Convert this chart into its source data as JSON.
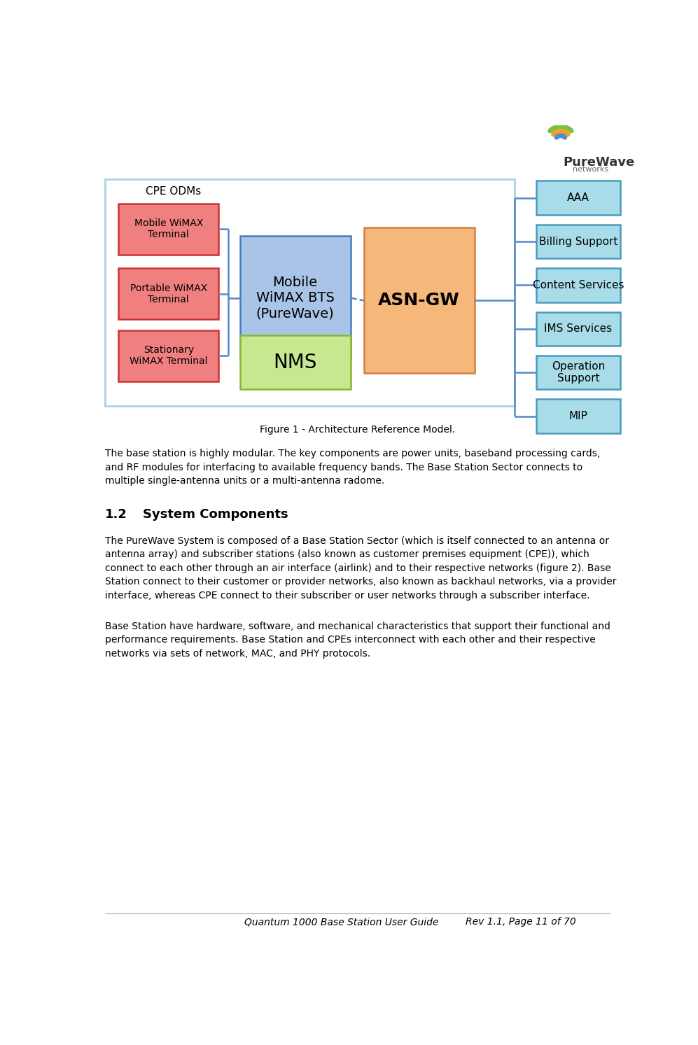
{
  "title": "Figure 1 - Architecture Reference Model.",
  "footer_left": "Quantum 1000 Base Station User Guide",
  "footer_right": "Rev 1.1, Page 11 of 70",
  "outer_box_color": "#a8d4e6",
  "cpe_label": "CPE ODMs",
  "cpe_boxes": [
    {
      "label": "Mobile WiMAX\nTerminal",
      "color": "#f08080",
      "edge": "#cc3333"
    },
    {
      "label": "Portable WiMAX\nTerminal",
      "color": "#f08080",
      "edge": "#cc3333"
    },
    {
      "label": "Stationary\nWiMAX Terminal",
      "color": "#f08080",
      "edge": "#cc3333"
    }
  ],
  "bts_box": {
    "label": "Mobile\nWiMAX BTS\n(PureWave)",
    "color": "#aac4e8",
    "edge": "#4a7cba"
  },
  "nms_box": {
    "label": "NMS",
    "color": "#c8e890",
    "edge": "#88b830"
  },
  "asgw_box": {
    "label": "ASN-GW",
    "color": "#f5b87a",
    "edge": "#d08040"
  },
  "right_boxes": [
    {
      "label": "AAA"
    },
    {
      "label": "Billing Support"
    },
    {
      "label": "Content Services"
    },
    {
      "label": "IMS Services"
    },
    {
      "label": "Operation\nSupport"
    },
    {
      "label": "MIP"
    }
  ],
  "rb_color": "#a8dce8",
  "rb_edge": "#4a9ac0",
  "connector_color": "#5588cc",
  "dashed_color": "#5588cc",
  "paragraph1": "The base station is highly modular. The key components are power units, baseband processing cards,\nand RF modules for interfacing to available frequency bands. The Base Station Sector connects to\nmultiple single-antenna units or a multi-antenna radome.",
  "section_num": "1.2",
  "section_title": "System Components",
  "paragraph2": "The PureWave System is composed of a Base Station Sector (which is itself connected to an antenna or\nantenna array) and subscriber stations (also known as customer premises equipment (CPE)), which\nconnect to each other through an air interface (airlink) and to their respective networks (figure 2). Base\nStation connect to their customer or provider networks, also known as backhaul networks, via a provider\ninterface, whereas CPE connect to their subscriber or user networks through a subscriber interface.",
  "paragraph3": "Base Station have hardware, software, and mechanical characteristics that support their functional and\nperformance requirements. Base Station and CPEs interconnect with each other and their respective\nnetworks via sets of network, MAC, and PHY protocols."
}
